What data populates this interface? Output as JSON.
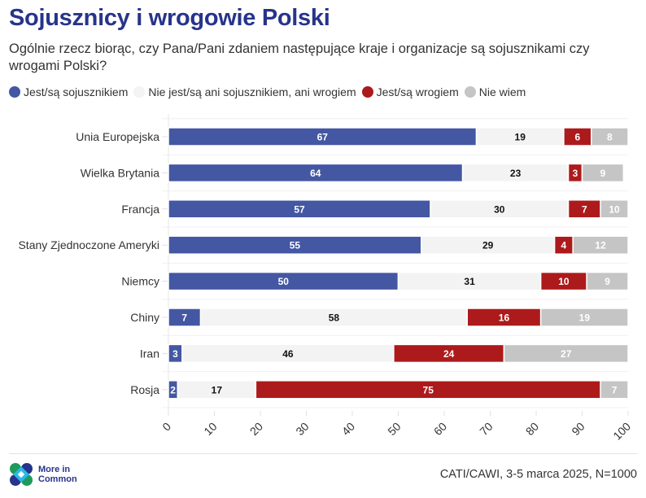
{
  "title": "Sojusznicy i wrogowie Polski",
  "subtitle": "Ogólnie rzecz biorąc, czy Pana/Pani zdaniem następujące kraje i organizacje są sojusznikami czy wrogami Polski?",
  "legend": [
    {
      "label": "Jest/są sojusznikiem",
      "color": "#4457a3"
    },
    {
      "label": "Nie jest/są ani sojusznikiem, ani wrogiem",
      "color": "#f3f3f3"
    },
    {
      "label": "Jest/są wrogiem",
      "color": "#ad1a1c"
    },
    {
      "label": "Nie wiem",
      "color": "#c5c5c5"
    }
  ],
  "footer": {
    "logo_line1": "More in",
    "logo_line2": "Common",
    "source": "CATI/CAWI, 3-5 marca 2025, N=1000"
  },
  "chart_data": {
    "type": "bar",
    "orientation": "horizontal",
    "stacked": true,
    "title": "Sojusznicy i wrogowie Polski",
    "xlabel": "",
    "ylabel": "",
    "xlim": [
      0,
      100
    ],
    "xticks": [
      0,
      10,
      20,
      30,
      40,
      50,
      60,
      70,
      80,
      90,
      100
    ],
    "grid": true,
    "legend_position": "top-left",
    "categories": [
      "Unia Europejska",
      "Wielka Brytania",
      "Francja",
      "Stany Zjednoczone Ameryki",
      "Niemcy",
      "Chiny",
      "Iran",
      "Rosja"
    ],
    "series": [
      {
        "name": "Jest/są sojusznikiem",
        "color": "#4457a3",
        "label_color": "#ffffff",
        "values": [
          67,
          64,
          57,
          55,
          50,
          7,
          3,
          2
        ]
      },
      {
        "name": "Nie jest/są ani sojusznikiem, ani wrogiem",
        "color": "#f3f3f3",
        "label_color": "#111111",
        "values": [
          19,
          23,
          30,
          29,
          31,
          58,
          46,
          17
        ]
      },
      {
        "name": "Jest/są wrogiem",
        "color": "#ad1a1c",
        "label_color": "#ffffff",
        "values": [
          6,
          3,
          7,
          4,
          10,
          16,
          24,
          75
        ]
      },
      {
        "name": "Nie wiem",
        "color": "#c5c5c5",
        "label_color": "#ffffff",
        "values": [
          8,
          9,
          10,
          12,
          9,
          19,
          27,
          7
        ]
      }
    ]
  }
}
